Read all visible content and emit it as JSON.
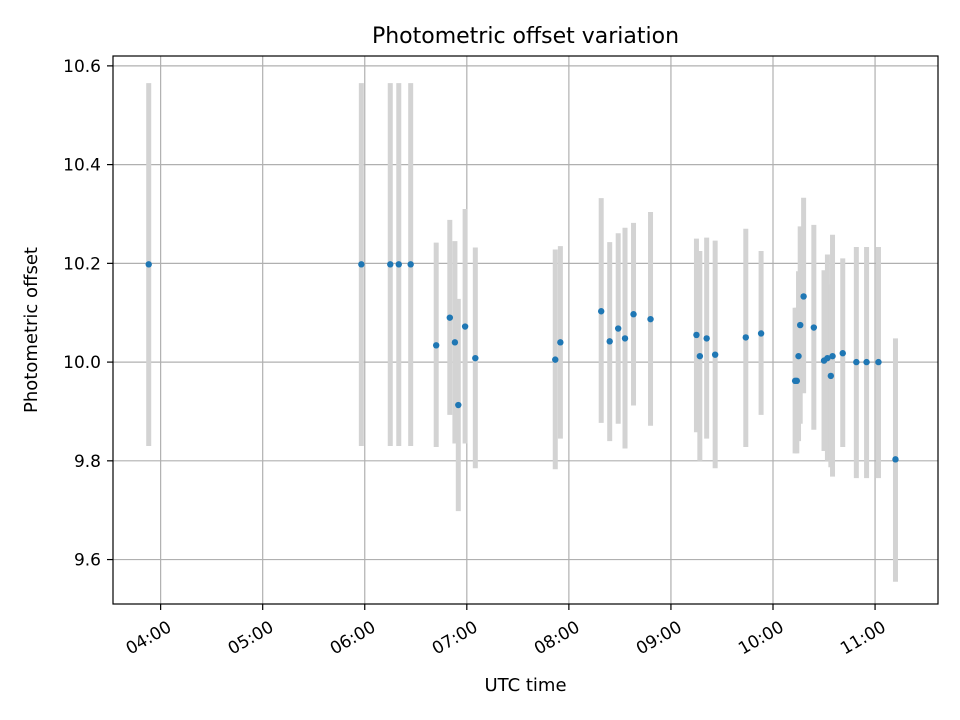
{
  "chart_data": {
    "type": "scatter",
    "title": "Photometric offset variation",
    "xlabel": "UTC time",
    "ylabel": "Photometric offset",
    "x_unit": "HH:MM UTC",
    "xlim": [
      "03:32",
      "11:37"
    ],
    "ylim": [
      9.51,
      10.62
    ],
    "x_ticks": [
      "04:00",
      "05:00",
      "06:00",
      "07:00",
      "08:00",
      "09:00",
      "10:00",
      "11:00"
    ],
    "y_ticks": [
      9.6,
      9.8,
      10.0,
      10.2,
      10.4,
      10.6
    ],
    "y_tick_labels": [
      "9.6",
      "9.8",
      "10.0",
      "10.2",
      "10.4",
      "10.6"
    ],
    "grid": true,
    "colors": {
      "points": "#1f77b4",
      "error_bars": "#d3d3d3"
    },
    "series": [
      {
        "points": [
          {
            "x": "03:53",
            "y": 10.198,
            "ylow": 9.83,
            "yhigh": 10.565
          },
          {
            "x": "05:58",
            "y": 10.198,
            "ylow": 9.83,
            "yhigh": 10.565
          },
          {
            "x": "06:15",
            "y": 10.198,
            "ylow": 9.83,
            "yhigh": 10.565
          },
          {
            "x": "06:20",
            "y": 10.198,
            "ylow": 9.83,
            "yhigh": 10.565
          },
          {
            "x": "06:27",
            "y": 10.198,
            "ylow": 9.83,
            "yhigh": 10.565
          },
          {
            "x": "06:42",
            "y": 10.034,
            "ylow": 9.828,
            "yhigh": 10.242
          },
          {
            "x": "06:50",
            "y": 10.09,
            "ylow": 9.893,
            "yhigh": 10.288
          },
          {
            "x": "06:53",
            "y": 10.04,
            "ylow": 9.835,
            "yhigh": 10.245
          },
          {
            "x": "06:55",
            "y": 9.913,
            "ylow": 9.698,
            "yhigh": 10.128
          },
          {
            "x": "06:59",
            "y": 10.072,
            "ylow": 9.835,
            "yhigh": 10.31
          },
          {
            "x": "07:05",
            "y": 10.008,
            "ylow": 9.785,
            "yhigh": 10.232
          },
          {
            "x": "07:52",
            "y": 10.005,
            "ylow": 9.783,
            "yhigh": 10.228
          },
          {
            "x": "07:55",
            "y": 10.04,
            "ylow": 9.845,
            "yhigh": 10.235
          },
          {
            "x": "08:19",
            "y": 10.103,
            "ylow": 9.877,
            "yhigh": 10.332
          },
          {
            "x": "08:24",
            "y": 10.042,
            "ylow": 9.84,
            "yhigh": 10.243
          },
          {
            "x": "08:29",
            "y": 10.068,
            "ylow": 9.875,
            "yhigh": 10.261
          },
          {
            "x": "08:33",
            "y": 10.048,
            "ylow": 9.825,
            "yhigh": 10.272
          },
          {
            "x": "08:38",
            "y": 10.097,
            "ylow": 9.912,
            "yhigh": 10.282
          },
          {
            "x": "08:48",
            "y": 10.087,
            "ylow": 9.871,
            "yhigh": 10.304
          },
          {
            "x": "09:15",
            "y": 10.055,
            "ylow": 9.858,
            "yhigh": 10.25
          },
          {
            "x": "09:17",
            "y": 10.012,
            "ylow": 9.8,
            "yhigh": 10.225
          },
          {
            "x": "09:21",
            "y": 10.048,
            "ylow": 9.845,
            "yhigh": 10.252
          },
          {
            "x": "09:26",
            "y": 10.015,
            "ylow": 9.785,
            "yhigh": 10.246
          },
          {
            "x": "09:44",
            "y": 10.05,
            "ylow": 9.828,
            "yhigh": 10.27
          },
          {
            "x": "09:53",
            "y": 10.058,
            "ylow": 9.893,
            "yhigh": 10.225
          },
          {
            "x": "10:13",
            "y": 9.962,
            "ylow": 9.815,
            "yhigh": 10.11
          },
          {
            "x": "10:14",
            "y": 9.962,
            "ylow": 9.815,
            "yhigh": 10.11
          },
          {
            "x": "10:15",
            "y": 10.012,
            "ylow": 9.84,
            "yhigh": 10.184
          },
          {
            "x": "10:16",
            "y": 10.075,
            "ylow": 9.875,
            "yhigh": 10.275
          },
          {
            "x": "10:18",
            "y": 10.133,
            "ylow": 9.937,
            "yhigh": 10.333
          },
          {
            "x": "10:24",
            "y": 10.07,
            "ylow": 9.863,
            "yhigh": 10.278
          },
          {
            "x": "10:30",
            "y": 10.003,
            "ylow": 9.82,
            "yhigh": 10.186
          },
          {
            "x": "10:32",
            "y": 10.008,
            "ylow": 9.8,
            "yhigh": 10.218
          },
          {
            "x": "10:34",
            "y": 9.972,
            "ylow": 9.787,
            "yhigh": 10.158
          },
          {
            "x": "10:35",
            "y": 10.012,
            "ylow": 9.768,
            "yhigh": 10.258
          },
          {
            "x": "10:41",
            "y": 10.018,
            "ylow": 9.828,
            "yhigh": 10.21
          },
          {
            "x": "10:49",
            "y": 10.0,
            "ylow": 9.765,
            "yhigh": 10.233
          },
          {
            "x": "10:55",
            "y": 10.0,
            "ylow": 9.765,
            "yhigh": 10.233
          },
          {
            "x": "11:02",
            "y": 10.0,
            "ylow": 9.765,
            "yhigh": 10.233
          },
          {
            "x": "11:12",
            "y": 9.803,
            "ylow": 9.555,
            "yhigh": 10.048
          }
        ]
      }
    ]
  }
}
